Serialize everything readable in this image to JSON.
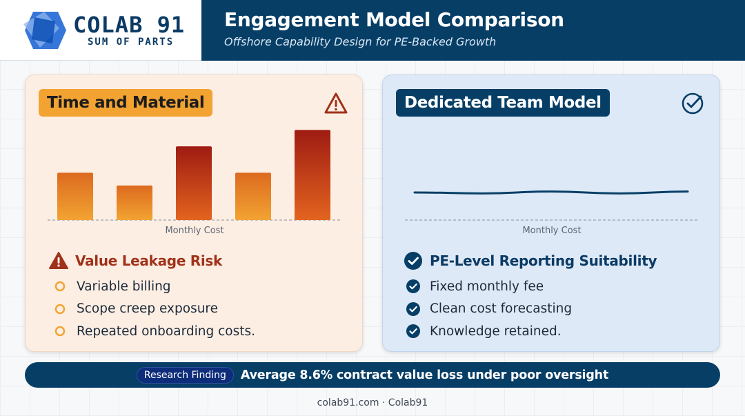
{
  "brand": {
    "name": "COLAB 91",
    "tagline": "SUM OF PARTS"
  },
  "header": {
    "title": "Engagement Model Comparison",
    "subtitle": "Offshore Capability Design for PE-Backed Growth"
  },
  "left_card": {
    "tag": "Time and Material",
    "corner_icon": "warning-triangle-icon",
    "axis_label": "Monthly Cost",
    "section_icon": "warning-filled-icon",
    "section_title": "Value Leakage Risk",
    "bullets": [
      "Variable billing",
      "Scope creep exposure",
      "Repeated onboarding costs."
    ],
    "colors": {
      "accent": "#f2a332",
      "warn": "#a0321a",
      "bar_top_high": "#9e1b12",
      "bar_bottom": "#f2a332"
    }
  },
  "right_card": {
    "tag": "Dedicated Team Model",
    "corner_icon": "check-circle-icon",
    "axis_label": "Monthly Cost",
    "section_icon": "check-filled-icon",
    "section_title": "PE-Level Reporting Suitability",
    "bullets": [
      "Fixed monthly fee",
      "Clean cost forecasting",
      "Knowledge retained."
    ],
    "colors": {
      "accent": "#063e66"
    }
  },
  "chart_data": [
    {
      "type": "bar",
      "categories": [
        "",
        "",
        "",
        "",
        ""
      ],
      "values": [
        52,
        38,
        81,
        52,
        99
      ],
      "xlabel": "Monthly Cost",
      "ylabel": "",
      "ylim": [
        0,
        100
      ],
      "grid": false
    },
    {
      "type": "line",
      "x": [
        1,
        2,
        3,
        4,
        5
      ],
      "values": [
        50,
        49,
        51,
        49,
        51
      ],
      "xlabel": "Monthly Cost",
      "ylabel": "",
      "ylim": [
        0,
        100
      ],
      "grid": false
    }
  ],
  "finding": {
    "badge": "Research Finding",
    "text": "Average 8.6% contract value loss under poor oversight"
  },
  "footer": {
    "text": "colab91.com · Colab91"
  }
}
